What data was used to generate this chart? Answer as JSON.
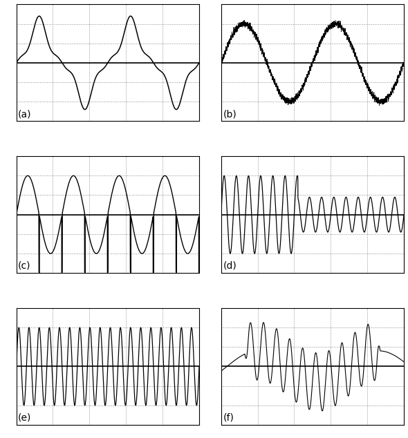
{
  "title_a": "(a)",
  "title_b": "(b)",
  "title_c": "(c)",
  "title_d": "(d)",
  "title_e": "(e)",
  "title_f": "(f)",
  "fig_bg": "#ffffff",
  "line_color": "#000000",
  "grid_color": "#888888",
  "zero_line_color": "#000000",
  "n_points": 3000,
  "grid_nx": 5,
  "grid_ny": 6
}
